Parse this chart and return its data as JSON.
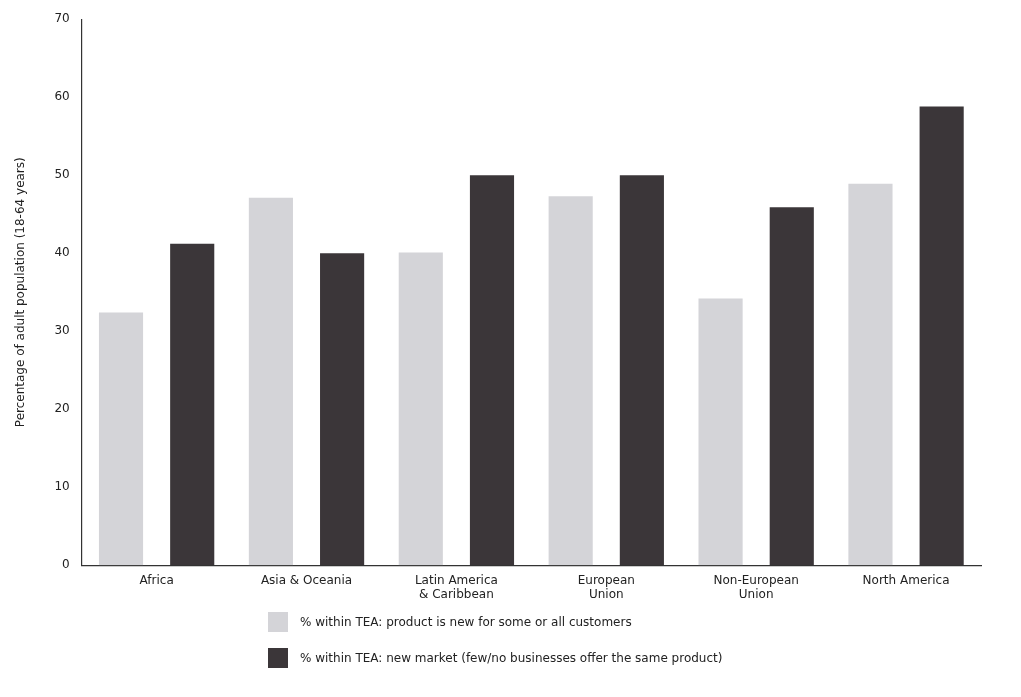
{
  "chart_data": {
    "type": "bar",
    "ylabel": "Percentage of adult population (18-64 years)",
    "categories": [
      "Africa",
      "Asia & Oceania",
      "Latin America\n& Caribbean",
      "European\nUnion",
      "Non-European\nUnion",
      "North America"
    ],
    "series": [
      {
        "name": "% within TEA: product is new for some or all customers",
        "color": "#d4d4d8",
        "values": [
          32.4,
          47.1,
          40.1,
          47.3,
          34.2,
          48.9
        ]
      },
      {
        "name": "% within TEA: new market (few/no businesses offer the same product)",
        "color": "#3b3639",
        "values": [
          41.2,
          40.0,
          50.0,
          50.0,
          45.9,
          58.8
        ]
      }
    ],
    "ylim": [
      0,
      70
    ],
    "yticks": [
      0,
      10,
      20,
      30,
      40,
      50,
      60,
      70
    ],
    "grid": false,
    "legend": "bottom"
  }
}
